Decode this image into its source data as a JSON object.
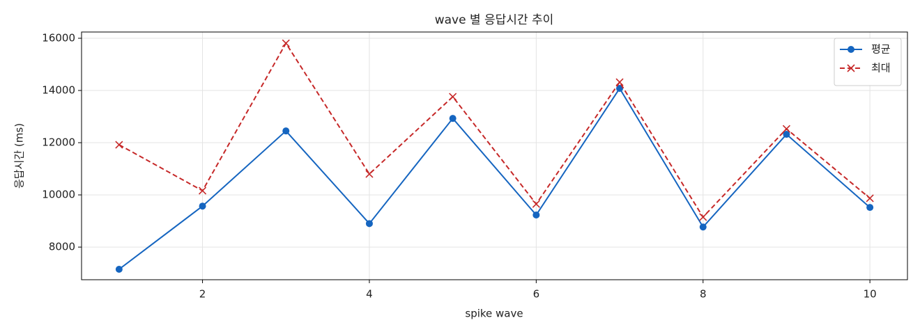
{
  "chart_data": {
    "type": "line",
    "title": "wave 별 응답시간 추이",
    "x_label": "spike wave",
    "y_label": "응답시간 (ms)",
    "x": [
      1,
      2,
      3,
      4,
      5,
      6,
      7,
      8,
      9,
      10
    ],
    "series": [
      {
        "name": "평균",
        "color": "#1565c0",
        "marker": "circle",
        "dash": "solid",
        "values": [
          7150,
          9570,
          12450,
          8900,
          12930,
          9230,
          14080,
          8770,
          12320,
          9520
        ]
      },
      {
        "name": "최대",
        "color": "#c62828",
        "marker": "x",
        "dash": "dashed",
        "values": [
          11920,
          10160,
          15810,
          10800,
          13760,
          9650,
          14320,
          9150,
          12530,
          9870
        ]
      }
    ],
    "xlim": [
      0.55,
      10.45
    ],
    "xticks": [
      2,
      4,
      6,
      8,
      10
    ],
    "ylim": [
      6750,
      16240
    ],
    "yticks": [
      8000,
      10000,
      12000,
      14000,
      16000
    ],
    "grid": true,
    "legend": "upper-right"
  }
}
